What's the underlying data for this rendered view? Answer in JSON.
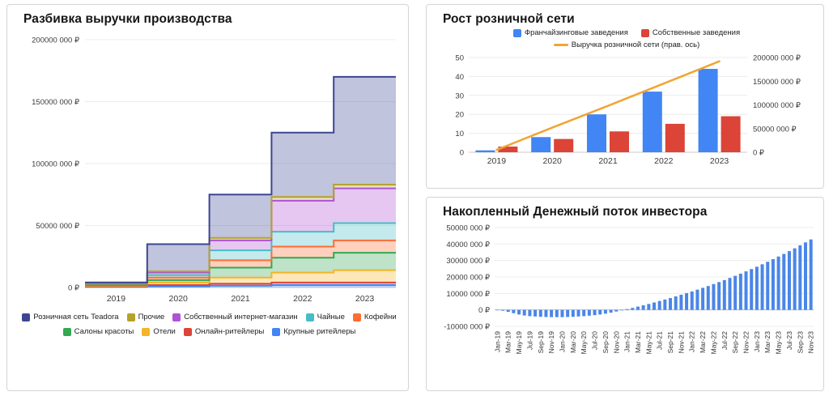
{
  "chart_data": [
    {
      "type": "area",
      "variant": "stepped-stacked",
      "title": "Разбивка выручки производства",
      "categories": [
        "2019",
        "2020",
        "2021",
        "2022",
        "2023"
      ],
      "ylim": [
        0,
        200000000
      ],
      "yticks": [
        {
          "v": 0,
          "label": "0 ₽"
        },
        {
          "v": 50000000,
          "label": "50000 000 ₽"
        },
        {
          "v": 100000000,
          "label": "100000 000 ₽"
        },
        {
          "v": 150000000,
          "label": "150000 000 ₽"
        },
        {
          "v": 200000000,
          "label": "200000 000 ₽"
        }
      ],
      "series": [
        {
          "name": "Крупные ритейлеры",
          "color": "#4285f4",
          "values": [
            500000,
            1000000,
            1500000,
            2000000,
            2000000
          ]
        },
        {
          "name": "Онлайн-ритейлеры",
          "color": "#db4437",
          "values": [
            500000,
            1000000,
            1500000,
            2000000,
            2000000
          ]
        },
        {
          "name": "Отели",
          "color": "#f5b426",
          "values": [
            500000,
            2000000,
            5000000,
            8000000,
            10000000
          ]
        },
        {
          "name": "Салоны красоты",
          "color": "#34a853",
          "values": [
            500000,
            2000000,
            8000000,
            12000000,
            14000000
          ]
        },
        {
          "name": "Кофейни",
          "color": "#ff6d34",
          "values": [
            1000000,
            2000000,
            6000000,
            9000000,
            10000000
          ]
        },
        {
          "name": "Чайные",
          "color": "#46bdc6",
          "values": [
            500000,
            2000000,
            8000000,
            12000000,
            14000000
          ]
        },
        {
          "name": "Собственный интернет-магазин",
          "color": "#b052d6",
          "values": [
            500000,
            2000000,
            8000000,
            25000000,
            28000000
          ]
        },
        {
          "name": "Прочие",
          "color": "#b5a22b",
          "values": [
            0,
            1000000,
            2000000,
            3000000,
            3000000
          ]
        },
        {
          "name": "Розничная сеть Teadora",
          "color": "#3c4693",
          "values": [
            0,
            22000000,
            35000000,
            52000000,
            87000000
          ]
        }
      ],
      "legend_order_note": "legend shown top-layer first"
    },
    {
      "type": "bar",
      "variant": "grouped-with-line",
      "title": "Рост розничной сети",
      "categories": [
        "2019",
        "2020",
        "2021",
        "2022",
        "2023"
      ],
      "left_ylim": [
        0,
        50
      ],
      "left_ticks": [
        {
          "v": 0,
          "label": "0"
        },
        {
          "v": 10,
          "label": "10"
        },
        {
          "v": 20,
          "label": "20"
        },
        {
          "v": 30,
          "label": "30"
        },
        {
          "v": 40,
          "label": "40"
        },
        {
          "v": 50,
          "label": "50"
        }
      ],
      "right_ylim": [
        0,
        200000000
      ],
      "right_ticks": [
        {
          "v": 0,
          "label": "0 ₽"
        },
        {
          "v": 50000000,
          "label": "50000 000 ₽"
        },
        {
          "v": 100000000,
          "label": "100000 000 ₽"
        },
        {
          "v": 150000000,
          "label": "150000 000 ₽"
        },
        {
          "v": 200000000,
          "label": "200000 000 ₽"
        }
      ],
      "bar_series": [
        {
          "name": "Франчайзинговые заведения",
          "color": "#4285f4",
          "values": [
            1,
            8,
            20,
            32,
            44
          ]
        },
        {
          "name": "Собственные заведения",
          "color": "#db4437",
          "values": [
            3,
            7,
            11,
            15,
            19
          ]
        }
      ],
      "line_series": {
        "name": "Выручка розничной сети (прав. ось)",
        "color": "#f0a532",
        "axis": "right",
        "values": [
          5000000,
          52000000,
          98000000,
          145000000,
          192000000
        ]
      }
    },
    {
      "type": "bar",
      "title": "Накопленный Денежный поток инвестора",
      "bar_color": "#4a86e8",
      "ylim": [
        -10000000,
        50000000
      ],
      "yticks": [
        {
          "v": -10000000,
          "label": "-10000 000 ₽"
        },
        {
          "v": 0,
          "label": "0 ₽"
        },
        {
          "v": 10000000,
          "label": "10000 000 ₽"
        },
        {
          "v": 20000000,
          "label": "20000 000 ₽"
        },
        {
          "v": 30000000,
          "label": "30000 000 ₽"
        },
        {
          "v": 40000000,
          "label": "40000 000 ₽"
        },
        {
          "v": 50000000,
          "label": "50000 000 ₽"
        }
      ],
      "tick_every": 2,
      "months": [
        "Jan-19",
        "Feb-19",
        "Mar-19",
        "Apr-19",
        "May-19",
        "Jun-19",
        "Jul-19",
        "Aug-19",
        "Sep-19",
        "Oct-19",
        "Nov-19",
        "Dec-19",
        "Jan-20",
        "Feb-20",
        "Mar-20",
        "Apr-20",
        "May-20",
        "Jun-20",
        "Jul-20",
        "Aug-20",
        "Sep-20",
        "Oct-20",
        "Nov-20",
        "Dec-20",
        "Jan-21",
        "Feb-21",
        "Mar-21",
        "Apr-21",
        "May-21",
        "Jun-21",
        "Jul-21",
        "Aug-21",
        "Sep-21",
        "Oct-21",
        "Nov-21",
        "Dec-21",
        "Jan-22",
        "Feb-22",
        "Mar-22",
        "Apr-22",
        "May-22",
        "Jun-22",
        "Jul-22",
        "Aug-22",
        "Sep-22",
        "Oct-22",
        "Nov-22",
        "Dec-22",
        "Jan-23",
        "Feb-23",
        "Mar-23",
        "Apr-23",
        "May-23",
        "Jun-23",
        "Jul-23",
        "Aug-23",
        "Sep-23",
        "Oct-23",
        "Nov-23"
      ],
      "values": [
        0,
        -500000,
        -1200000,
        -2000000,
        -2800000,
        -3400000,
        -3800000,
        -4000000,
        -4200000,
        -4300000,
        -4400000,
        -4400000,
        -4400000,
        -4300000,
        -4200000,
        -4000000,
        -3800000,
        -3500000,
        -3200000,
        -2800000,
        -2300000,
        -1700000,
        -1000000,
        -300000,
        500000,
        1200000,
        2000000,
        2800000,
        3600000,
        4500000,
        5400000,
        6300000,
        7200000,
        8200000,
        9200000,
        10200000,
        11200000,
        12300000,
        13400000,
        14500000,
        15700000,
        16900000,
        18100000,
        19400000,
        20700000,
        22000000,
        23400000,
        24800000,
        26200000,
        27700000,
        29200000,
        30800000,
        32400000,
        34000000,
        35700000,
        37400000,
        39200000,
        41000000,
        42800000
      ]
    }
  ]
}
